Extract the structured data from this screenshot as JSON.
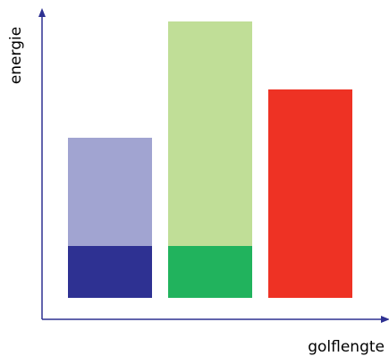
{
  "chart_data": {
    "type": "bar",
    "stacked": true,
    "ylabel": "energie",
    "xlabel": "golflengte",
    "ylim": [
      0,
      321
    ],
    "stacks": [
      {
        "segments": [
          {
            "value": 58,
            "color": "#2e3192"
          },
          {
            "value": 121,
            "color": "#a1a4d1"
          }
        ]
      },
      {
        "segments": [
          {
            "value": 58,
            "color": "#21b35d"
          },
          {
            "value": 251,
            "color": "#c0de97"
          }
        ]
      },
      {
        "segments": [
          {
            "value": 233,
            "color": "#ee3224"
          }
        ]
      }
    ],
    "axis_color": "#2e3192"
  }
}
